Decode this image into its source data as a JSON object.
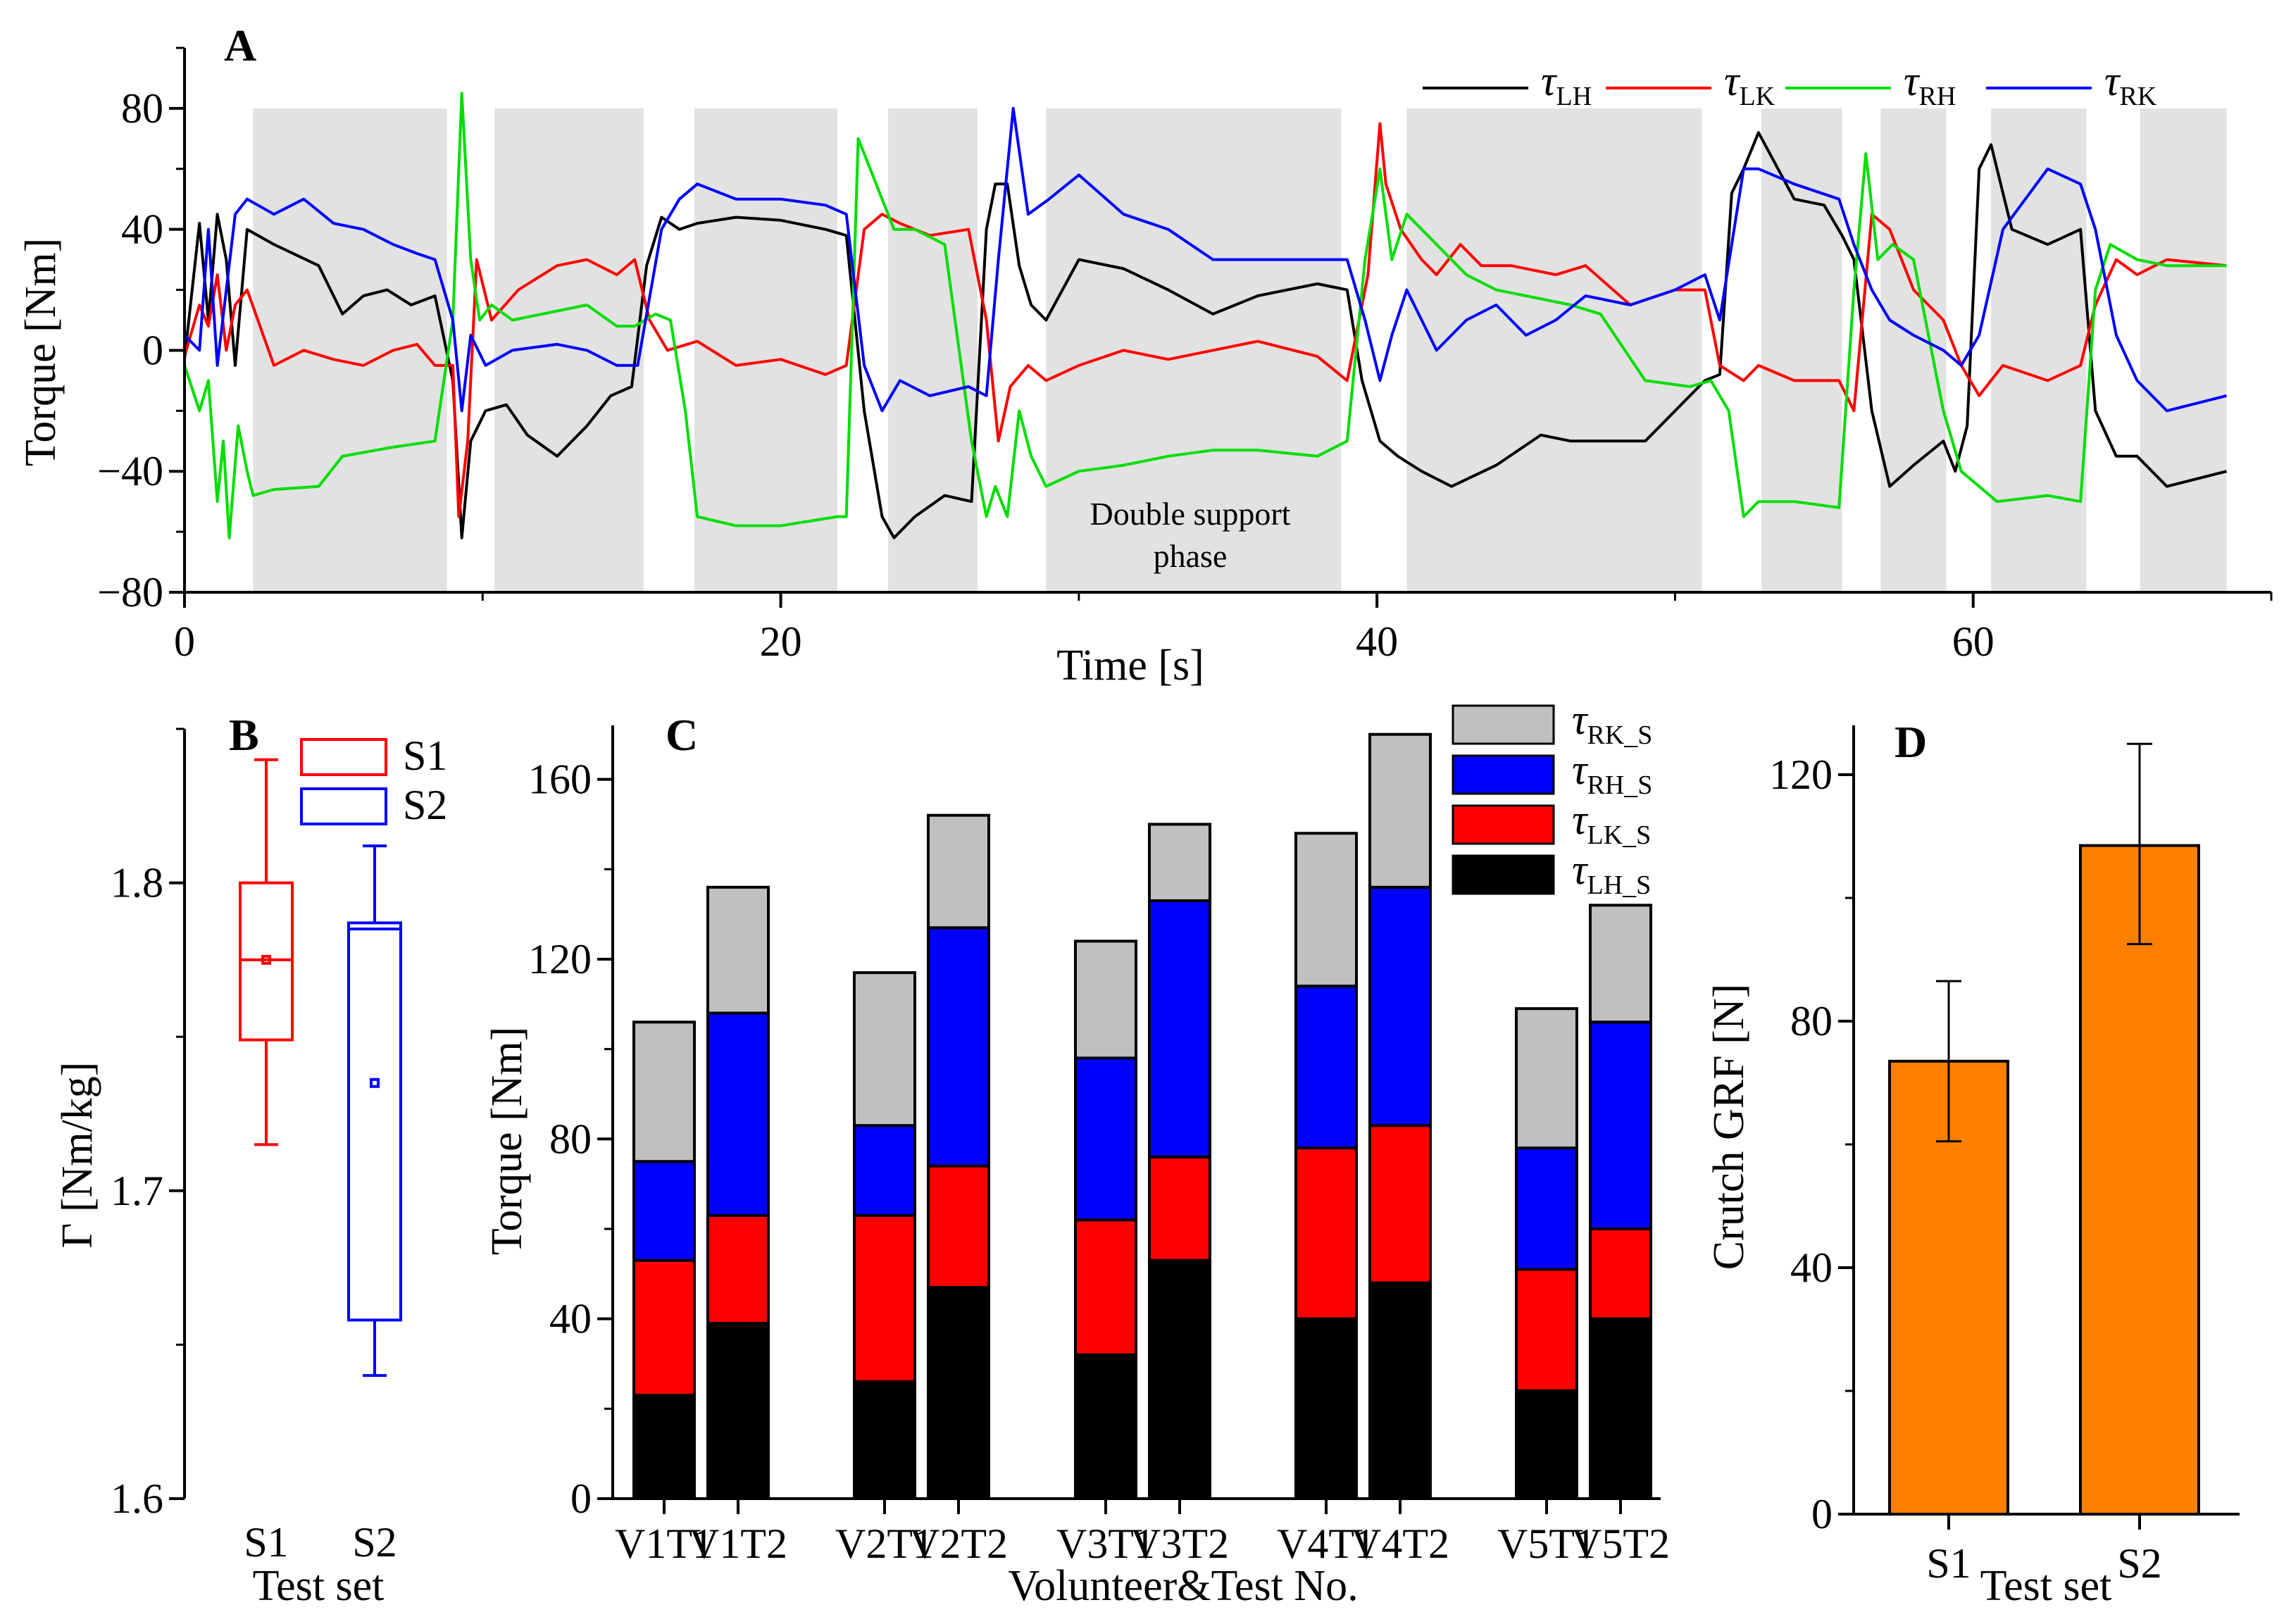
{
  "colors": {
    "tau_LH": "#000000",
    "tau_LK": "#ff0000",
    "tau_RH": "#00dd00",
    "tau_RK": "#0000ff",
    "shade": "#e2e2e2",
    "bar_gray": "#c0c0c0",
    "bar_blue": "#0000ff",
    "bar_red": "#ff0000",
    "bar_black": "#000000",
    "orange": "#ff8000"
  },
  "chart_data": [
    {
      "panel": "A",
      "type": "line",
      "xlabel": "Time [s]",
      "ylabel": "Torque [Nm]",
      "xlim": [
        0,
        70
      ],
      "ylim": [
        -80,
        100
      ],
      "xticks": [
        0,
        20,
        40,
        60
      ],
      "yticks": [
        -80,
        -40,
        0,
        40,
        80
      ],
      "legend_position": "top-right",
      "annotation": [
        "Double support",
        "phase"
      ],
      "shaded_intervals": [
        [
          2.3,
          8.8
        ],
        [
          10.4,
          15.4
        ],
        [
          17.1,
          21.9
        ],
        [
          23.6,
          26.6
        ],
        [
          28.9,
          38.8
        ],
        [
          41.0,
          50.9
        ],
        [
          52.9,
          55.6
        ],
        [
          56.9,
          59.1
        ],
        [
          60.6,
          63.8
        ],
        [
          65.6,
          68.5
        ]
      ],
      "series": [
        {
          "name": "τ",
          "sub": "LH",
          "color_key": "tau_LH",
          "x": [
            0,
            0.5,
            0.8,
            1.1,
            1.4,
            1.7,
            2.1,
            3.0,
            4.5,
            5.3,
            6.0,
            6.8,
            7.6,
            8.4,
            9.0,
            9.3,
            9.6,
            10.1,
            10.8,
            11.5,
            12.5,
            13.5,
            14.3,
            15.0,
            15.5,
            16.0,
            16.6,
            17.2,
            18.5,
            20,
            21.5,
            22.2,
            22.8,
            23.4,
            23.8,
            24.5,
            25.5,
            26.4,
            26.9,
            27.2,
            27.6,
            28.0,
            28.4,
            28.9,
            30,
            31.5,
            33,
            34.5,
            36,
            38,
            39,
            39.5,
            40.1,
            40.7,
            41.5,
            42.5,
            44,
            45.5,
            46.5,
            47.2,
            49,
            51,
            51.5,
            51.9,
            52.3,
            52.8,
            54,
            55,
            55.6,
            56.0,
            56.6,
            57.2,
            58,
            59,
            59.4,
            59.8,
            60.2,
            60.6,
            61.3,
            62.5,
            63.6,
            64.1,
            64.8,
            65.5,
            66.5,
            68.5
          ],
          "y": [
            -3,
            42,
            10,
            45,
            30,
            -5,
            40,
            35,
            28,
            12,
            18,
            20,
            15,
            18,
            -10,
            -62,
            -30,
            -20,
            -18,
            -28,
            -35,
            -25,
            -15,
            -12,
            28,
            44,
            40,
            42,
            44,
            43,
            40,
            38,
            -20,
            -55,
            -62,
            -55,
            -48,
            -50,
            40,
            55,
            55,
            28,
            15,
            10,
            30,
            27,
            20,
            12,
            18,
            22,
            20,
            -10,
            -30,
            -35,
            -40,
            -45,
            -38,
            -28,
            -30,
            -30,
            -30,
            -10,
            -8,
            52,
            60,
            72,
            50,
            48,
            38,
            30,
            -20,
            -45,
            -38,
            -30,
            -40,
            -25,
            60,
            68,
            40,
            35,
            40,
            -20,
            -35,
            -35,
            -45,
            -40
          ]
        },
        {
          "name": "τ",
          "sub": "LK",
          "color_key": "tau_LK",
          "x": [
            0,
            0.5,
            0.8,
            1.1,
            1.4,
            1.7,
            2.1,
            3.0,
            4.0,
            5.0,
            6.0,
            7.0,
            7.8,
            8.4,
            9.0,
            9.2,
            9.5,
            9.8,
            10.3,
            11.2,
            12.5,
            13.5,
            14.5,
            15.1,
            15.6,
            16.2,
            17.2,
            18.5,
            20,
            21.5,
            22.2,
            22.8,
            23.4,
            24.0,
            25,
            26.3,
            26.9,
            27.3,
            27.7,
            28.3,
            28.9,
            30,
            31.5,
            33,
            34.5,
            36,
            38,
            39,
            39.7,
            40.1,
            40.3,
            40.8,
            41.5,
            42,
            42.8,
            43.5,
            44.5,
            46,
            47,
            48.5,
            50,
            51,
            51.5,
            52.3,
            52.8,
            54,
            55.5,
            56.0,
            56.6,
            57.2,
            58,
            59,
            59.6,
            60.2,
            61,
            62.5,
            63.6,
            64.1,
            64.8,
            65.5,
            66.5,
            68.5
          ],
          "y": [
            -2,
            15,
            8,
            25,
            0,
            15,
            20,
            -5,
            0,
            -3,
            -5,
            0,
            2,
            -5,
            -5,
            -55,
            -30,
            30,
            10,
            20,
            28,
            30,
            25,
            30,
            10,
            0,
            3,
            -5,
            -3,
            -8,
            -5,
            40,
            45,
            42,
            38,
            40,
            10,
            -30,
            -12,
            -5,
            -10,
            -5,
            0,
            -3,
            0,
            3,
            -2,
            -10,
            25,
            75,
            55,
            40,
            30,
            25,
            35,
            28,
            28,
            25,
            28,
            15,
            20,
            20,
            -5,
            -10,
            -5,
            -10,
            -10,
            -20,
            45,
            40,
            20,
            10,
            -5,
            -15,
            -5,
            -10,
            -5,
            15,
            30,
            25,
            30,
            28
          ]
        },
        {
          "name": "τ",
          "sub": "RH",
          "color_key": "tau_RH",
          "x": [
            0,
            0.5,
            0.8,
            1.1,
            1.3,
            1.5,
            1.8,
            2.1,
            2.3,
            3.0,
            4.5,
            5.3,
            7,
            8.4,
            9.0,
            9.3,
            9.6,
            9.9,
            10.3,
            11.0,
            12,
            13.5,
            14.5,
            15.1,
            15.8,
            16.3,
            16.8,
            17.2,
            18.5,
            20,
            21.9,
            22.2,
            22.6,
            23.0,
            23.4,
            23.8,
            24.5,
            25.5,
            26.4,
            26.9,
            27.2,
            27.6,
            28.0,
            28.4,
            28.9,
            30,
            31.5,
            33,
            34.5,
            36,
            38,
            39,
            39.6,
            40.1,
            40.5,
            41,
            42,
            43,
            44,
            45,
            46.5,
            47.5,
            49,
            50.5,
            51.2,
            51.8,
            52.3,
            52.8,
            54,
            55.5,
            56.0,
            56.4,
            56.8,
            57.3,
            58,
            59,
            59.6,
            60.2,
            60.8,
            62.5,
            63.6,
            64.1,
            64.6,
            65.5,
            66.5,
            68.5
          ],
          "y": [
            -5,
            -20,
            -10,
            -50,
            -30,
            -62,
            -25,
            -40,
            -48,
            -46,
            -45,
            -35,
            -32,
            -30,
            10,
            85,
            30,
            10,
            15,
            10,
            12,
            15,
            8,
            8,
            12,
            10,
            -20,
            -55,
            -58,
            -58,
            -55,
            -55,
            70,
            60,
            50,
            40,
            40,
            35,
            -30,
            -55,
            -45,
            -55,
            -20,
            -35,
            -45,
            -40,
            -38,
            -35,
            -33,
            -33,
            -35,
            -30,
            30,
            60,
            30,
            45,
            35,
            25,
            20,
            18,
            15,
            12,
            -10,
            -12,
            -10,
            -20,
            -55,
            -50,
            -50,
            -52,
            20,
            65,
            30,
            35,
            30,
            -20,
            -40,
            -45,
            -50,
            -48,
            -50,
            20,
            35,
            30,
            28,
            28
          ]
        },
        {
          "name": "τ",
          "sub": "RK",
          "color_key": "tau_RK",
          "x": [
            0,
            0.5,
            0.8,
            1.1,
            1.4,
            1.7,
            2.1,
            3.0,
            4.0,
            5.0,
            6.0,
            7.0,
            7.8,
            8.4,
            9.0,
            9.3,
            9.6,
            10.1,
            11.0,
            12.5,
            13.5,
            14.5,
            15.2,
            16.0,
            16.6,
            17.2,
            18.5,
            20,
            21.5,
            22.2,
            22.8,
            23.4,
            24.0,
            25,
            26.3,
            26.9,
            27.3,
            27.8,
            28.3,
            29,
            30,
            31.5,
            33,
            34.5,
            36,
            38,
            39,
            39.6,
            40.1,
            40.5,
            41,
            42,
            43,
            44,
            45,
            46,
            47,
            48.5,
            50,
            51,
            51.5,
            52.3,
            52.8,
            54,
            55.5,
            56.0,
            56.6,
            57.2,
            58,
            59,
            59.6,
            60.2,
            61,
            62.5,
            63.6,
            64.1,
            64.8,
            65.5,
            66.5,
            68.5
          ],
          "y": [
            5,
            0,
            40,
            -5,
            20,
            45,
            50,
            45,
            50,
            42,
            40,
            35,
            32,
            30,
            10,
            -20,
            5,
            -5,
            0,
            2,
            0,
            -5,
            -5,
            40,
            50,
            55,
            50,
            50,
            48,
            45,
            -5,
            -20,
            -10,
            -15,
            -12,
            -15,
            30,
            80,
            45,
            50,
            58,
            45,
            40,
            30,
            30,
            30,
            30,
            10,
            -10,
            5,
            20,
            0,
            10,
            15,
            5,
            10,
            18,
            15,
            20,
            25,
            10,
            60,
            60,
            55,
            50,
            35,
            20,
            10,
            5,
            0,
            -5,
            5,
            40,
            60,
            55,
            40,
            5,
            -10,
            -20,
            -15
          ]
        }
      ]
    },
    {
      "panel": "B",
      "type": "box",
      "xlabel": "Test set",
      "ylabel": "Γ [Nm/kg]",
      "ylim": [
        1.6,
        1.85
      ],
      "yticks": [
        1.6,
        1.7,
        1.8
      ],
      "categories": [
        "S1",
        "S2"
      ],
      "legend_position": "top-right",
      "boxes": [
        {
          "name": "S1",
          "color_key": "tau_LK",
          "whisker_low": 1.715,
          "q1": 1.749,
          "median": 1.775,
          "q3": 1.8,
          "whisker_high": 1.84,
          "mean": 1.775
        },
        {
          "name": "S2",
          "color_key": "tau_RK",
          "whisker_low": 1.64,
          "q1": 1.658,
          "median": 1.785,
          "q3": 1.787,
          "whisker_high": 1.812,
          "mean": 1.735
        }
      ]
    },
    {
      "panel": "C",
      "type": "bar",
      "stacked": true,
      "xlabel": "Volunteer&Test No.",
      "ylabel": "Torque [Nm]",
      "ylim": [
        0,
        172
      ],
      "yticks": [
        0,
        40,
        80,
        120,
        160
      ],
      "legend_position": "top-right",
      "categories": [
        "V1T1",
        "V1T2",
        "V2T1",
        "V2T2",
        "V3T1",
        "V3T2",
        "V4T1",
        "V4T2",
        "V5T1",
        "V5T2"
      ],
      "series": [
        {
          "name": "τ",
          "sub": "LH_S",
          "color_key": "bar_black",
          "values": [
            23,
            39,
            26,
            47,
            32,
            53,
            40,
            48,
            24,
            40
          ]
        },
        {
          "name": "τ",
          "sub": "LK_S",
          "color_key": "bar_red",
          "values": [
            30,
            24,
            37,
            27,
            30,
            23,
            38,
            35,
            27,
            20
          ]
        },
        {
          "name": "τ",
          "sub": "RH_S",
          "color_key": "bar_blue",
          "values": [
            22,
            45,
            20,
            53,
            36,
            57,
            36,
            53,
            27,
            46
          ]
        },
        {
          "name": "τ",
          "sub": "RK_S",
          "color_key": "bar_gray",
          "values": [
            31,
            28,
            34,
            25,
            26,
            17,
            34,
            34,
            31,
            26
          ]
        }
      ]
    },
    {
      "panel": "D",
      "type": "bar",
      "xlabel": "Test set",
      "ylabel": "Crutch GRF [N]",
      "ylim": [
        0,
        128
      ],
      "yticks": [
        0,
        40,
        80,
        120
      ],
      "categories": [
        "S1",
        "S2"
      ],
      "values": [
        73.5,
        108.5
      ],
      "errors_low": [
        60.5,
        92.5
      ],
      "errors_high": [
        86.5,
        125
      ]
    }
  ]
}
